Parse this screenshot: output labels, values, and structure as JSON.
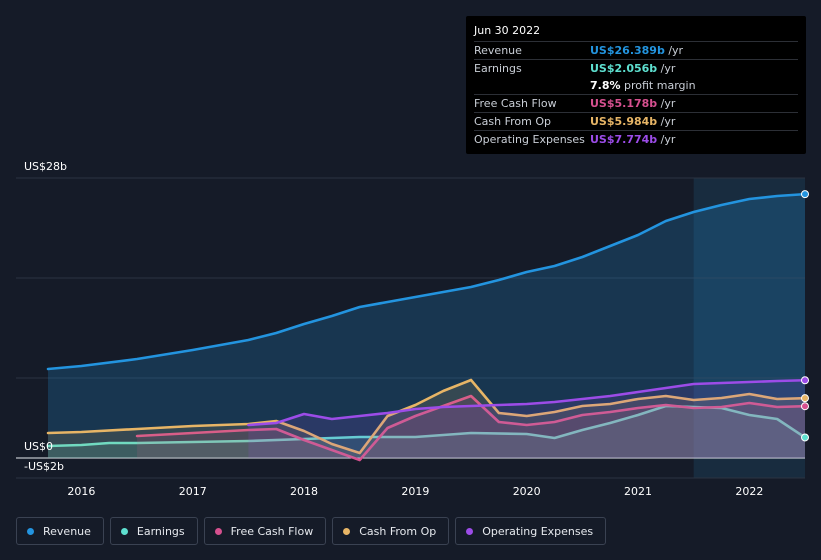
{
  "chart_data": {
    "type": "area",
    "x_ticks": [
      "2016",
      "2017",
      "2018",
      "2019",
      "2020",
      "2021",
      "2022"
    ],
    "y_labels": {
      "top": "US$28b",
      "zero": "US$0",
      "bottom": "-US$2b"
    },
    "ylim": [
      -2,
      28
    ],
    "xlim": [
      2015.7,
      2022.5
    ],
    "highlight_start": 2021.5,
    "series": [
      {
        "name": "Revenue",
        "color": "#2394df",
        "fill": true,
        "points": [
          [
            2015.7,
            8.9
          ],
          [
            2016.0,
            9.2
          ],
          [
            2016.5,
            9.9
          ],
          [
            2017.0,
            10.8
          ],
          [
            2017.5,
            11.8
          ],
          [
            2017.75,
            12.5
          ],
          [
            2018.0,
            13.4
          ],
          [
            2018.25,
            14.2
          ],
          [
            2018.5,
            15.1
          ],
          [
            2018.75,
            15.6
          ],
          [
            2019.0,
            16.1
          ],
          [
            2019.25,
            16.6
          ],
          [
            2019.5,
            17.1
          ],
          [
            2019.75,
            17.8
          ],
          [
            2020.0,
            18.6
          ],
          [
            2020.25,
            19.2
          ],
          [
            2020.5,
            20.1
          ],
          [
            2020.75,
            21.2
          ],
          [
            2021.0,
            22.3
          ],
          [
            2021.25,
            23.7
          ],
          [
            2021.5,
            24.6
          ],
          [
            2021.75,
            25.3
          ],
          [
            2022.0,
            25.9
          ],
          [
            2022.25,
            26.2
          ],
          [
            2022.5,
            26.389
          ]
        ]
      },
      {
        "name": "Earnings",
        "color": "#5ee0d0",
        "fill": true,
        "points": [
          [
            2015.7,
            1.2
          ],
          [
            2016.0,
            1.3
          ],
          [
            2016.25,
            1.5
          ],
          [
            2016.5,
            1.5
          ],
          [
            2017.0,
            1.6
          ],
          [
            2017.5,
            1.7
          ],
          [
            2018.0,
            1.9
          ],
          [
            2018.5,
            2.1
          ],
          [
            2019.0,
            2.1
          ],
          [
            2019.25,
            2.3
          ],
          [
            2019.5,
            2.5
          ],
          [
            2020.0,
            2.4
          ],
          [
            2020.25,
            2.0
          ],
          [
            2020.5,
            2.8
          ],
          [
            2020.75,
            3.5
          ],
          [
            2021.0,
            4.3
          ],
          [
            2021.25,
            5.2
          ],
          [
            2021.5,
            5.1
          ],
          [
            2021.75,
            5.0
          ],
          [
            2022.0,
            4.3
          ],
          [
            2022.25,
            3.9
          ],
          [
            2022.5,
            2.056
          ]
        ]
      },
      {
        "name": "Free Cash Flow",
        "color": "#d6508f",
        "fill": true,
        "points": [
          [
            2016.5,
            2.2
          ],
          [
            2017.0,
            2.5
          ],
          [
            2017.5,
            2.8
          ],
          [
            2017.75,
            2.9
          ],
          [
            2018.0,
            1.8
          ],
          [
            2018.25,
            0.8
          ],
          [
            2018.5,
            -0.2
          ],
          [
            2018.75,
            3.0
          ],
          [
            2019.0,
            4.2
          ],
          [
            2019.25,
            5.2
          ],
          [
            2019.5,
            6.2
          ],
          [
            2019.75,
            3.6
          ],
          [
            2020.0,
            3.3
          ],
          [
            2020.25,
            3.6
          ],
          [
            2020.5,
            4.3
          ],
          [
            2020.75,
            4.6
          ],
          [
            2021.0,
            5.0
          ],
          [
            2021.25,
            5.3
          ],
          [
            2021.5,
            5.0
          ],
          [
            2021.75,
            5.1
          ],
          [
            2022.0,
            5.5
          ],
          [
            2022.25,
            5.1
          ],
          [
            2022.5,
            5.178
          ]
        ]
      },
      {
        "name": "Cash From Op",
        "color": "#e7b566",
        "fill": true,
        "points": [
          [
            2015.7,
            2.5
          ],
          [
            2016.0,
            2.6
          ],
          [
            2016.5,
            2.9
          ],
          [
            2017.0,
            3.2
          ],
          [
            2017.5,
            3.4
          ],
          [
            2017.75,
            3.7
          ],
          [
            2018.0,
            2.7
          ],
          [
            2018.25,
            1.4
          ],
          [
            2018.5,
            0.5
          ],
          [
            2018.75,
            4.2
          ],
          [
            2019.0,
            5.3
          ],
          [
            2019.25,
            6.7
          ],
          [
            2019.5,
            7.8
          ],
          [
            2019.75,
            4.5
          ],
          [
            2020.0,
            4.2
          ],
          [
            2020.25,
            4.6
          ],
          [
            2020.5,
            5.2
          ],
          [
            2020.75,
            5.4
          ],
          [
            2021.0,
            5.9
          ],
          [
            2021.25,
            6.2
          ],
          [
            2021.5,
            5.8
          ],
          [
            2021.75,
            6.0
          ],
          [
            2022.0,
            6.4
          ],
          [
            2022.25,
            5.9
          ],
          [
            2022.5,
            5.984
          ]
        ]
      },
      {
        "name": "Operating Expenses",
        "color": "#9c4ce8",
        "fill": true,
        "points": [
          [
            2017.5,
            3.3
          ],
          [
            2017.75,
            3.5
          ],
          [
            2018.0,
            4.4
          ],
          [
            2018.25,
            3.9
          ],
          [
            2018.5,
            4.2
          ],
          [
            2018.75,
            4.5
          ],
          [
            2019.0,
            4.9
          ],
          [
            2019.25,
            5.1
          ],
          [
            2019.5,
            5.2
          ],
          [
            2019.75,
            5.3
          ],
          [
            2020.0,
            5.4
          ],
          [
            2020.25,
            5.6
          ],
          [
            2020.5,
            5.9
          ],
          [
            2020.75,
            6.2
          ],
          [
            2021.0,
            6.6
          ],
          [
            2021.25,
            7.0
          ],
          [
            2021.5,
            7.4
          ],
          [
            2021.75,
            7.5
          ],
          [
            2022.0,
            7.6
          ],
          [
            2022.25,
            7.7
          ],
          [
            2022.5,
            7.774
          ]
        ]
      }
    ]
  },
  "tooltip": {
    "date": "Jun 30 2022",
    "rows": [
      {
        "label": "Revenue",
        "value": "US$26.389b",
        "unit": " /yr",
        "color": "#2394df"
      },
      {
        "label": "Earnings",
        "value": "US$2.056b",
        "unit": " /yr",
        "color": "#5ee0d0"
      },
      {
        "label": "",
        "value": "7.8%",
        "unit": " profit margin",
        "color": "#ffffff"
      },
      {
        "label": "Free Cash Flow",
        "value": "US$5.178b",
        "unit": " /yr",
        "color": "#d6508f"
      },
      {
        "label": "Cash From Op",
        "value": "US$5.984b",
        "unit": " /yr",
        "color": "#e7b566"
      },
      {
        "label": "Operating Expenses",
        "value": "US$7.774b",
        "unit": " /yr",
        "color": "#9c4ce8"
      }
    ]
  },
  "legend": [
    {
      "label": "Revenue",
      "color": "#2394df"
    },
    {
      "label": "Earnings",
      "color": "#5ee0d0"
    },
    {
      "label": "Free Cash Flow",
      "color": "#d6508f"
    },
    {
      "label": "Cash From Op",
      "color": "#e7b566"
    },
    {
      "label": "Operating Expenses",
      "color": "#9c4ce8"
    }
  ]
}
